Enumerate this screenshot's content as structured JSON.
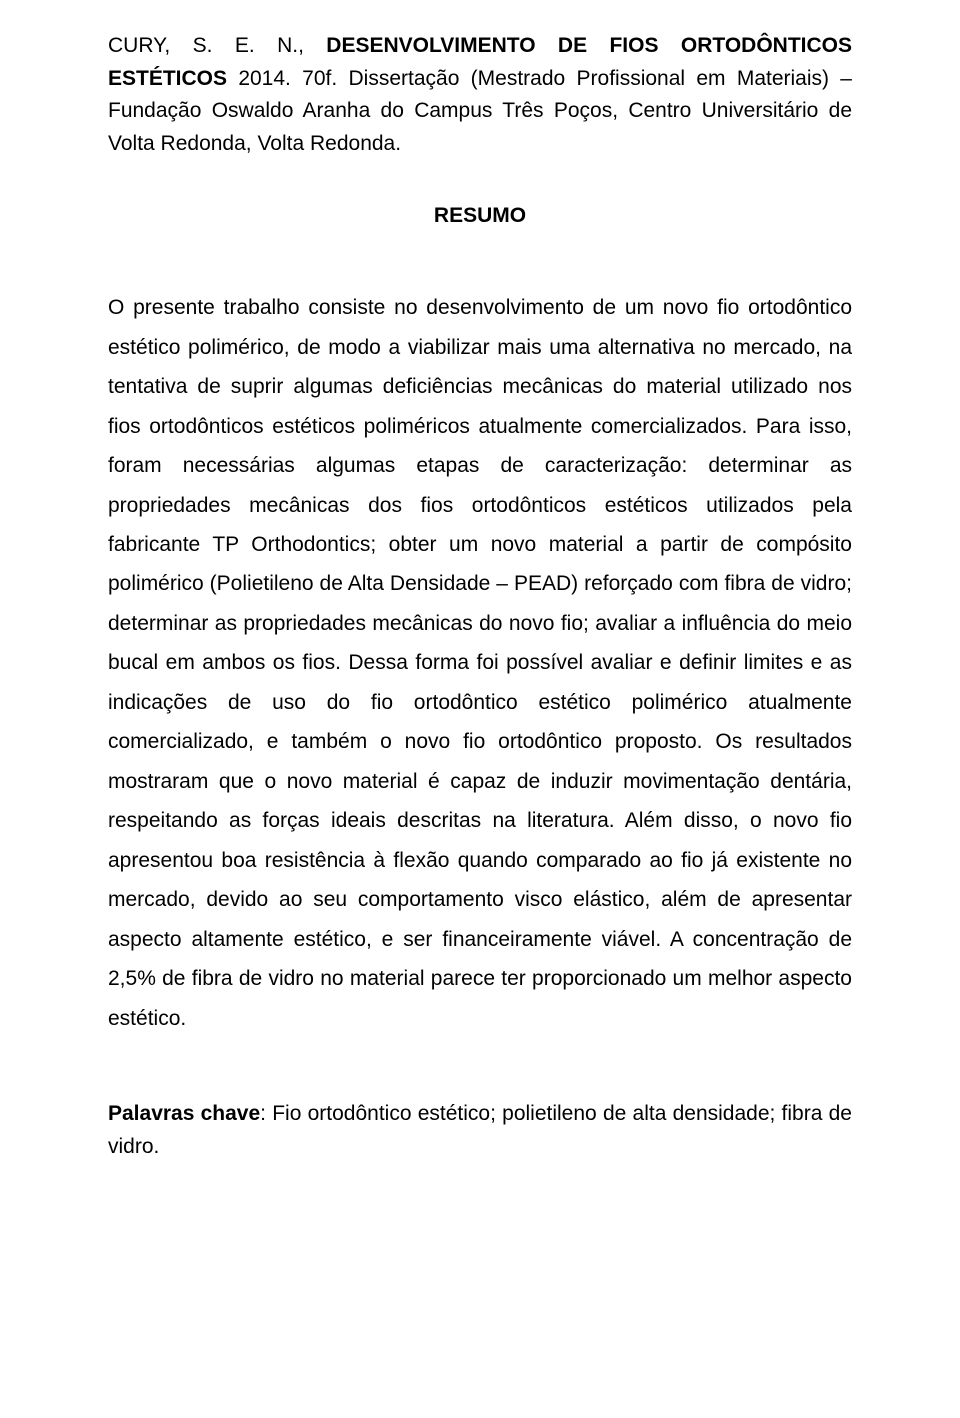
{
  "citation": {
    "author": "CURY, S. E. N., ",
    "title_bold": "DESENVOLVIMENTO DE FIOS ORTODÔNTICOS ESTÉTICOS ",
    "rest": "2014. 70f. Dissertação (Mestrado Profissional em Materiais) – Fundação Oswaldo Aranha do Campus Três Poços, Centro Universitário de Volta Redonda, Volta Redonda."
  },
  "section_title": "RESUMO",
  "body": "O presente trabalho consiste no desenvolvimento de um novo fio ortodôntico estético polimérico, de modo a viabilizar mais uma alternativa no mercado, na tentativa de suprir algumas deficiências mecânicas do material utilizado nos fios ortodônticos estéticos poliméricos atualmente comercializados. Para isso, foram necessárias algumas etapas de caracterização: determinar as propriedades mecânicas dos fios ortodônticos estéticos utilizados pela fabricante TP Orthodontics; obter um novo material a partir de compósito polimérico (Polietileno de Alta Densidade – PEAD) reforçado com fibra de vidro; determinar as propriedades mecânicas do novo fio; avaliar a influência do meio bucal em ambos os fios. Dessa forma foi possível avaliar e definir limites e as indicações de uso do fio ortodôntico estético polimérico atualmente comercializado, e também o novo fio ortodôntico proposto. Os resultados mostraram que o novo material é capaz de induzir movimentação dentária, respeitando as forças ideais descritas na literatura. Além disso, o novo fio apresentou boa resistência à flexão quando comparado ao fio já existente no mercado, devido ao seu comportamento visco elástico, além de apresentar aspecto altamente estético, e ser financeiramente viável. A concentração de 2,5% de fibra de vidro no material parece ter proporcionado um melhor aspecto estético.",
  "keywords": {
    "label": "Palavras chave",
    "text": ": Fio ortodôntico estético; polietileno de alta densidade; fibra de vidro."
  }
}
